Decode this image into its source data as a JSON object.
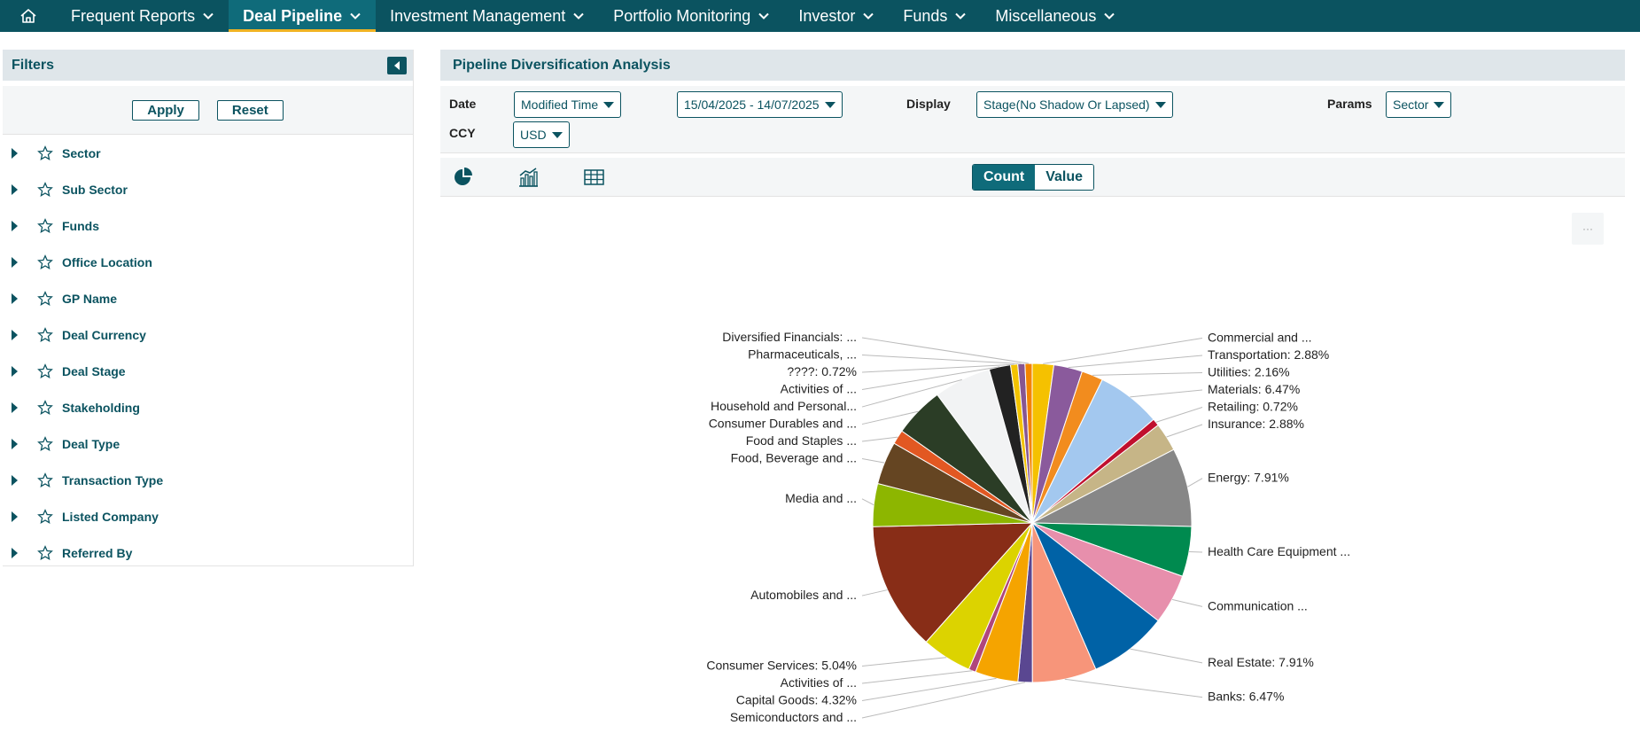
{
  "nav": {
    "items": [
      {
        "label": "Frequent Reports",
        "active": false
      },
      {
        "label": "Deal Pipeline",
        "active": true
      },
      {
        "label": "Investment Management",
        "active": false
      },
      {
        "label": "Portfolio Monitoring",
        "active": false
      },
      {
        "label": "Investor",
        "active": false
      },
      {
        "label": "Funds",
        "active": false
      },
      {
        "label": "Miscellaneous",
        "active": false
      }
    ]
  },
  "sidebar": {
    "title": "Filters",
    "apply_label": "Apply",
    "reset_label": "Reset",
    "items": [
      {
        "label": "Sector"
      },
      {
        "label": "Sub Sector"
      },
      {
        "label": "Funds"
      },
      {
        "label": "Office Location"
      },
      {
        "label": "GP Name"
      },
      {
        "label": "Deal Currency"
      },
      {
        "label": "Deal Stage"
      },
      {
        "label": "Stakeholding"
      },
      {
        "label": "Deal Type"
      },
      {
        "label": "Transaction Type"
      },
      {
        "label": "Listed Company"
      },
      {
        "label": "Referred By"
      }
    ]
  },
  "main": {
    "title": "Pipeline Diversification Analysis",
    "date_label": "Date",
    "date_type": "Modified Time",
    "date_range": "15/04/2025 - 14/07/2025",
    "display_label": "Display",
    "display_value": "Stage(No Shadow Or Lapsed)",
    "params_label": "Params",
    "params_value": "Sector",
    "ccy_label": "CCY",
    "ccy_value": "USD",
    "count_label": "Count",
    "value_label": "Value",
    "menu_glyph": "···"
  },
  "colors": {
    "nav_bg": "#0b5360",
    "accent": "#0f6b7a",
    "active_underline": "#f0b323"
  },
  "chart_data": {
    "type": "pie",
    "slices": [
      {
        "label": "Commercial and ...",
        "value": 2.16,
        "color": "#f5c100"
      },
      {
        "label": "Transportation: 2.88%",
        "value": 2.88,
        "color": "#8a5a9c"
      },
      {
        "label": "Utilities: 2.16%",
        "value": 2.16,
        "color": "#f28c1e"
      },
      {
        "label": "Materials: 6.47%",
        "value": 6.47,
        "color": "#a3c8ef"
      },
      {
        "label": "Retailing: 0.72%",
        "value": 0.72,
        "color": "#c0102e"
      },
      {
        "label": "Insurance: 2.88%",
        "value": 2.88,
        "color": "#c6b587"
      },
      {
        "label": "Energy: 7.91%",
        "value": 7.91,
        "color": "#878787"
      },
      {
        "label": "Health Care Equipment ...",
        "value": 5.04,
        "color": "#008a4f"
      },
      {
        "label": "Communication ...",
        "value": 5.04,
        "color": "#e78fac"
      },
      {
        "label": "Real Estate: 7.91%",
        "value": 7.91,
        "color": "#0062a6"
      },
      {
        "label": "Banks: 6.47%",
        "value": 6.47,
        "color": "#f7957a"
      },
      {
        "label": "Semiconductors and ...",
        "value": 1.44,
        "color": "#5a4791"
      },
      {
        "label": "Capital Goods: 4.32%",
        "value": 4.32,
        "color": "#f5a400"
      },
      {
        "label": "Activities of ...",
        "value": 0.72,
        "color": "#b0467c"
      },
      {
        "label": "Consumer Services: 5.04%",
        "value": 5.04,
        "color": "#dcd300"
      },
      {
        "label": "Automobiles and ...",
        "value": 12.95,
        "color": "#882d17"
      },
      {
        "label": "Media and ...",
        "value": 4.32,
        "color": "#8db600"
      },
      {
        "label": "Food, Beverage and ...",
        "value": 4.32,
        "color": "#654522"
      },
      {
        "label": "Food and Staples ...",
        "value": 1.44,
        "color": "#e25822"
      },
      {
        "label": "Consumer Durables and ...",
        "value": 5.04,
        "color": "#2b3d26"
      },
      {
        "label": "Household and Personal...",
        "value": 5.76,
        "color": "#f2f3f4"
      },
      {
        "label": "Activities of ...",
        "value": 2.16,
        "color": "#222222"
      },
      {
        "label": "????: 0.72%",
        "value": 0.72,
        "color": "#f3c300"
      },
      {
        "label": "Pharmaceuticals, ...",
        "value": 0.72,
        "color": "#875692"
      },
      {
        "label": "Diversified Financials: ...",
        "value": 0.72,
        "color": "#f38400"
      }
    ]
  }
}
